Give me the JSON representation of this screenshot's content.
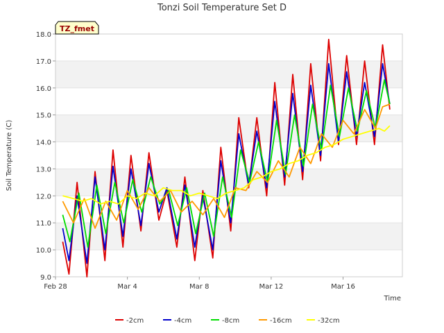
{
  "chart_data": {
    "type": "line",
    "title": "Tonzi Soil Temperature Set D",
    "xlabel": "Time",
    "ylabel": "Soil Temperature (C)",
    "badge": "TZ_fmet",
    "xlim": [
      0,
      19.3
    ],
    "ylim": [
      9.0,
      18.0
    ],
    "x_ticks": [
      {
        "x": 0,
        "label": "Feb 28"
      },
      {
        "x": 4,
        "label": "Mar 4"
      },
      {
        "x": 8,
        "label": "Mar 8"
      },
      {
        "x": 12,
        "label": "Mar 12"
      },
      {
        "x": 16,
        "label": "Mar 16"
      }
    ],
    "y_ticks": [
      {
        "y": 9.0,
        "label": "9.0"
      },
      {
        "y": 10.0,
        "label": "10.0"
      },
      {
        "y": 11.0,
        "label": "11.0"
      },
      {
        "y": 12.0,
        "label": "12.0"
      },
      {
        "y": 13.0,
        "label": "13.0"
      },
      {
        "y": 14.0,
        "label": "14.0"
      },
      {
        "y": 15.0,
        "label": "15.0"
      },
      {
        "y": 16.0,
        "label": "16.0"
      },
      {
        "y": 17.0,
        "label": "17.0"
      },
      {
        "y": 18.0,
        "label": "18.0"
      }
    ],
    "grid": "horizontal bands",
    "legend_position": "bottom",
    "series": [
      {
        "name": "-2cm",
        "color": "#dd0000",
        "x": [
          0.4,
          0.75,
          1.2,
          1.75,
          2.2,
          2.75,
          3.2,
          3.75,
          4.2,
          4.75,
          5.2,
          5.75,
          6.2,
          6.75,
          7.2,
          7.75,
          8.2,
          8.75,
          9.2,
          9.75,
          10.2,
          10.75,
          11.2,
          11.75,
          12.2,
          12.75,
          13.2,
          13.75,
          14.2,
          14.75,
          15.2,
          15.75,
          16.2,
          16.75,
          17.2,
          17.75,
          18.2,
          18.6
        ],
        "y": [
          10.3,
          9.1,
          12.5,
          9.0,
          12.9,
          9.6,
          13.7,
          10.1,
          13.5,
          10.7,
          13.6,
          11.1,
          12.2,
          10.1,
          12.7,
          9.6,
          12.2,
          9.7,
          13.8,
          10.7,
          14.9,
          12.3,
          14.9,
          12.0,
          16.2,
          12.4,
          16.5,
          12.6,
          16.9,
          13.3,
          17.8,
          13.9,
          17.2,
          13.9,
          17.0,
          13.9,
          17.6,
          15.2
        ]
      },
      {
        "name": "-4cm",
        "color": "#0000cc",
        "x": [
          0.4,
          0.75,
          1.2,
          1.75,
          2.2,
          2.75,
          3.2,
          3.75,
          4.2,
          4.75,
          5.2,
          5.75,
          6.2,
          6.75,
          7.2,
          7.75,
          8.2,
          8.75,
          9.2,
          9.75,
          10.2,
          10.75,
          11.2,
          11.75,
          12.2,
          12.75,
          13.2,
          13.75,
          14.2,
          14.75,
          15.2,
          15.75,
          16.2,
          16.75,
          17.2,
          17.75,
          18.2,
          18.6
        ],
        "y": [
          10.8,
          9.6,
          12.0,
          9.5,
          12.7,
          10.0,
          13.1,
          10.5,
          13.0,
          10.9,
          13.2,
          11.4,
          12.3,
          10.4,
          12.4,
          10.1,
          12.0,
          10.0,
          13.3,
          11.0,
          14.3,
          12.4,
          14.4,
          12.3,
          15.5,
          12.7,
          15.8,
          12.9,
          16.1,
          13.5,
          16.9,
          14.0,
          16.6,
          14.2,
          16.2,
          14.2,
          16.9,
          15.4
        ]
      },
      {
        "name": "-8cm",
        "color": "#00dd00",
        "x": [
          0.4,
          0.8,
          1.3,
          1.8,
          2.3,
          2.8,
          3.3,
          3.8,
          4.3,
          4.8,
          5.3,
          5.8,
          6.3,
          6.8,
          7.3,
          7.8,
          8.3,
          8.8,
          9.3,
          9.8,
          10.3,
          10.8,
          11.3,
          11.8,
          12.3,
          12.8,
          13.3,
          13.8,
          14.3,
          14.8,
          15.3,
          15.8,
          16.3,
          16.8,
          17.3,
          17.8,
          18.3,
          18.6
        ],
        "y": [
          11.3,
          10.3,
          12.1,
          10.1,
          12.4,
          10.6,
          12.5,
          11.0,
          12.6,
          11.4,
          12.7,
          11.7,
          12.2,
          10.9,
          12.3,
          10.6,
          12.1,
          10.5,
          12.7,
          11.2,
          13.7,
          12.5,
          14.0,
          12.5,
          14.8,
          12.8,
          15.0,
          13.1,
          15.4,
          13.7,
          16.1,
          14.2,
          16.0,
          14.4,
          15.9,
          14.5,
          16.3,
          15.4
        ]
      },
      {
        "name": "-16cm",
        "color": "#ff9900",
        "x": [
          0.4,
          1.0,
          1.6,
          2.2,
          2.8,
          3.4,
          4.0,
          4.6,
          5.2,
          5.8,
          6.4,
          7.0,
          7.6,
          8.2,
          8.8,
          9.4,
          10.0,
          10.6,
          11.2,
          11.8,
          12.4,
          13.0,
          13.6,
          14.2,
          14.8,
          15.4,
          16.0,
          16.6,
          17.2,
          17.8,
          18.2,
          18.6
        ],
        "y": [
          11.8,
          11.0,
          11.9,
          10.8,
          11.8,
          11.1,
          12.2,
          11.5,
          12.3,
          11.8,
          12.2,
          11.4,
          11.8,
          11.3,
          11.9,
          11.2,
          12.3,
          12.2,
          12.9,
          12.5,
          13.3,
          12.7,
          13.8,
          13.2,
          14.3,
          13.8,
          14.8,
          14.3,
          15.2,
          14.5,
          15.3,
          15.4
        ]
      },
      {
        "name": "-32cm",
        "color": "#ffff00",
        "x": [
          0.4,
          1.0,
          1.5,
          2.0,
          2.5,
          3.0,
          3.5,
          4.0,
          4.5,
          5.0,
          5.5,
          6.0,
          6.5,
          7.0,
          7.5,
          8.0,
          8.5,
          9.0,
          9.5,
          10.0,
          10.5,
          11.0,
          11.5,
          12.0,
          12.5,
          13.0,
          13.5,
          14.0,
          14.5,
          15.0,
          15.5,
          16.0,
          16.5,
          17.0,
          17.5,
          18.0,
          18.3,
          18.6
        ],
        "y": [
          12.0,
          11.9,
          11.8,
          11.9,
          11.7,
          11.8,
          11.7,
          12.0,
          11.9,
          12.1,
          12.0,
          12.3,
          12.2,
          12.2,
          12.0,
          12.1,
          12.0,
          11.9,
          12.1,
          12.2,
          12.3,
          12.6,
          12.7,
          12.9,
          13.0,
          13.2,
          13.3,
          13.5,
          13.6,
          13.8,
          13.9,
          14.1,
          14.2,
          14.3,
          14.4,
          14.5,
          14.4,
          14.6
        ]
      }
    ]
  }
}
